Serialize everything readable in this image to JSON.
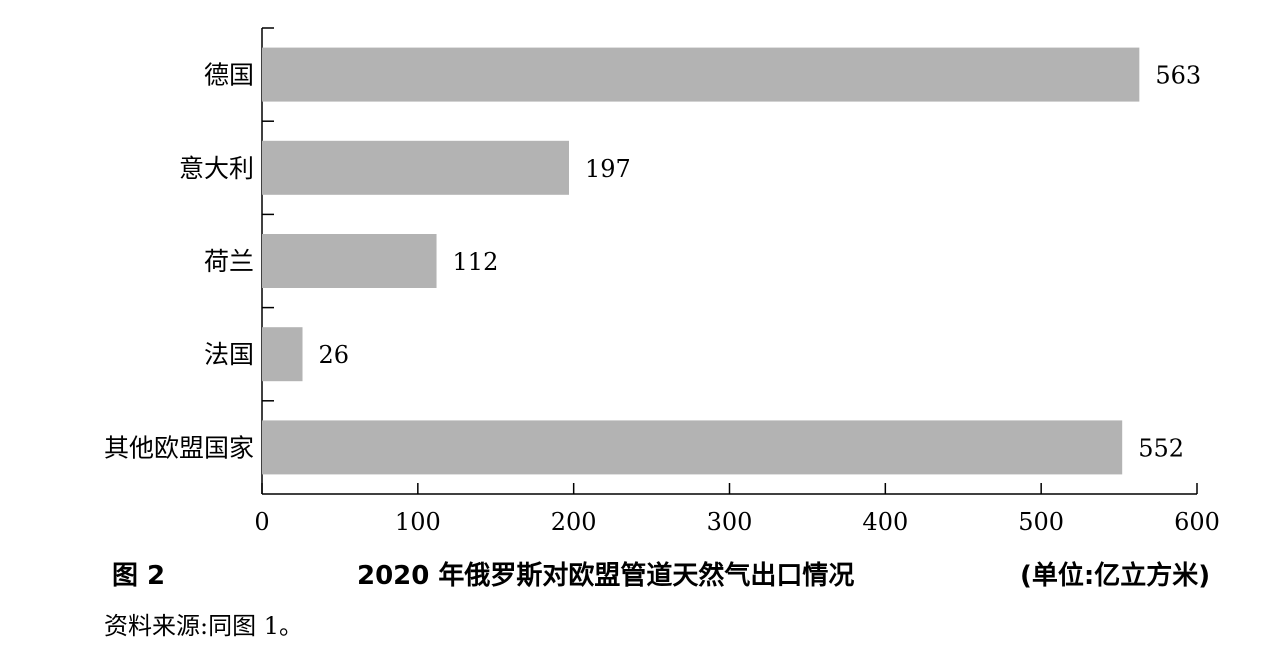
{
  "chart_data": {
    "type": "bar",
    "orientation": "horizontal",
    "categories": [
      "德国",
      "意大利",
      "荷兰",
      "法国",
      "其他欧盟国家"
    ],
    "values": [
      563,
      197,
      112,
      26,
      552
    ],
    "data_labels": [
      "563",
      "197",
      "112",
      "26",
      "552"
    ],
    "xlim": [
      0,
      600
    ],
    "x_ticks": [
      0,
      100,
      200,
      300,
      400,
      500,
      600
    ],
    "x_tick_labels": [
      "0",
      "100",
      "200",
      "300",
      "400",
      "500",
      "600"
    ],
    "bar_color": "#b3b3b3",
    "grid": false,
    "legend": "none"
  },
  "caption": {
    "figure_label": "图 2",
    "title": "2020 年俄罗斯对欧盟管道天然气出口情况",
    "unit": "(单位:亿立方米)"
  },
  "source_note": "资料来源:同图 1。"
}
